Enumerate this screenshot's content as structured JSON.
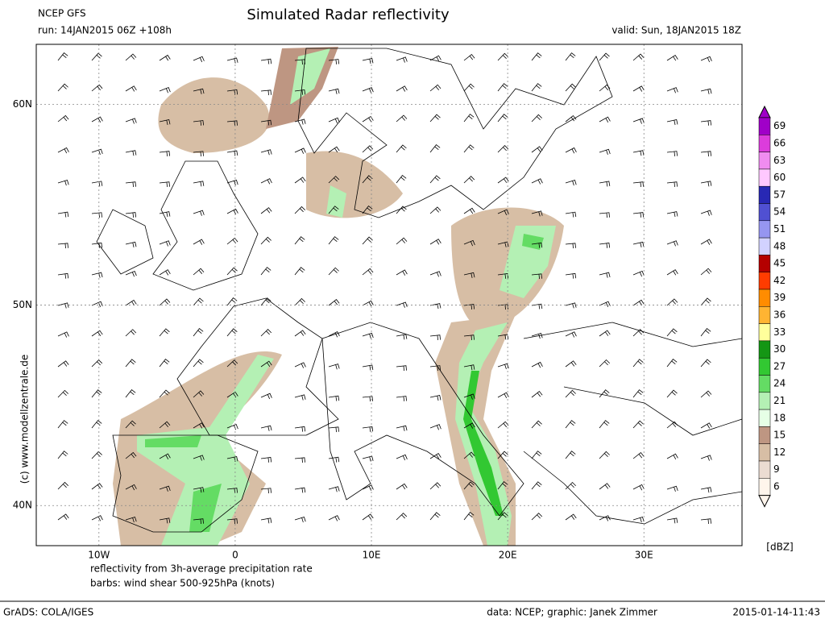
{
  "header": {
    "model": "NCEP GFS",
    "run": "run: 14JAN2015 06Z +108h",
    "title": "Simulated Radar reflectivity",
    "valid": "valid: Sun, 18JAN2015 18Z"
  },
  "map": {
    "xlim": [
      -14.6,
      37.2
    ],
    "ylim": [
      38,
      63
    ],
    "xticks": [
      {
        "value": -10,
        "label": "10W"
      },
      0,
      {
        "value": 10,
        "label": "10E"
      },
      {
        "value": 20,
        "label": "20E"
      },
      {
        "value": 30,
        "label": "30E"
      }
    ],
    "yticks": [
      {
        "value": 40,
        "label": "40N"
      },
      {
        "value": 50,
        "label": "50N"
      },
      {
        "value": 60,
        "label": "60N"
      }
    ],
    "copyright": "(c) www.modellzentrale.de",
    "notes": [
      "reflectivity from 3h-average precipitation rate",
      "barbs: wind shear 500-925hPa (knots)"
    ]
  },
  "colorbar": {
    "unit": "[dBZ]",
    "levels": [
      {
        "value": 69,
        "color": "#a000c8"
      },
      {
        "value": 66,
        "color": "#dc3cdc"
      },
      {
        "value": 63,
        "color": "#f08cf0"
      },
      {
        "value": 60,
        "color": "#ffc8ff"
      },
      {
        "value": 57,
        "color": "#2828b4"
      },
      {
        "value": 54,
        "color": "#5050d2"
      },
      {
        "value": 51,
        "color": "#9696f0"
      },
      {
        "value": 48,
        "color": "#d2d2ff"
      },
      {
        "value": 45,
        "color": "#b40000"
      },
      {
        "value": 42,
        "color": "#ff3c00"
      },
      {
        "value": 39,
        "color": "#ff8c00"
      },
      {
        "value": 36,
        "color": "#ffb432"
      },
      {
        "value": 33,
        "color": "#ffff9b"
      },
      {
        "value": 30,
        "color": "#149614"
      },
      {
        "value": 27,
        "color": "#32c832"
      },
      {
        "value": 24,
        "color": "#64dc64"
      },
      {
        "value": 21,
        "color": "#b4f0b4"
      },
      {
        "value": 18,
        "color": "#e6ffe6"
      },
      {
        "value": 15,
        "color": "#be9682"
      },
      {
        "value": 12,
        "color": "#d7bea5"
      },
      {
        "value": 9,
        "color": "#ebdcd2"
      },
      {
        "value": 6,
        "color": "#fff5ec"
      }
    ]
  },
  "footer": {
    "software": "GrADS: COLA/IGES",
    "credits": "data: NCEP; graphic: Janek Zimmer",
    "timestamp": "2015-01-14-11:43"
  }
}
